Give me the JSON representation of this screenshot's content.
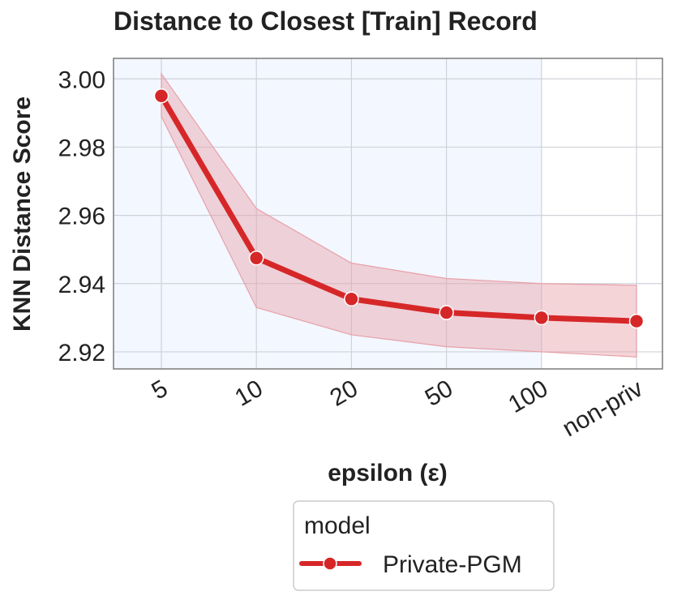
{
  "chart_data": {
    "type": "line",
    "title": "Distance to Closest [Train] Record",
    "xlabel": "epsilon (ε)",
    "ylabel": "KNN Distance Score",
    "categories": [
      "5",
      "10",
      "20",
      "50",
      "100",
      "non-priv"
    ],
    "ylim": [
      2.915,
      3.006
    ],
    "yticks": [
      "3.00",
      "2.98",
      "2.96",
      "2.94",
      "2.92"
    ],
    "grid": true,
    "shaded_region": {
      "from": "5",
      "to": "100",
      "color": "#f3f7ff"
    },
    "series": [
      {
        "name": "Private-PGM",
        "values": [
          2.995,
          2.9475,
          2.9355,
          2.9315,
          2.93,
          2.929
        ],
        "ci_lower": [
          2.989,
          2.933,
          2.925,
          2.9215,
          2.92,
          2.9185
        ],
        "ci_upper": [
          3.0015,
          2.962,
          2.946,
          2.9415,
          2.94,
          2.9395
        ],
        "color": "#d62728",
        "band_color": "#e8a0a8"
      }
    ],
    "legend": {
      "title": "model",
      "placement": "bottom-center"
    }
  }
}
